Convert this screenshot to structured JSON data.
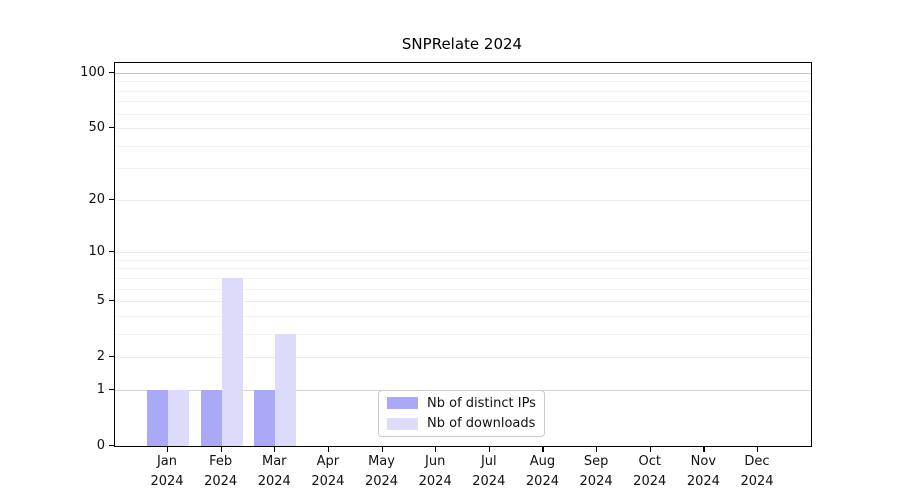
{
  "title": "SNPRelate 2024",
  "chart_data": {
    "type": "bar",
    "title": "SNPRelate 2024",
    "categories": [
      "Jan 2024",
      "Feb 2024",
      "Mar 2024",
      "Apr 2024",
      "May 2024",
      "Jun 2024",
      "Jul 2024",
      "Aug 2024",
      "Sep 2024",
      "Oct 2024",
      "Nov 2024",
      "Dec 2024"
    ],
    "month_labels": [
      "Jan",
      "Feb",
      "Mar",
      "Apr",
      "May",
      "Jun",
      "Jul",
      "Aug",
      "Sep",
      "Oct",
      "Nov",
      "Dec"
    ],
    "year_label": "2024",
    "series": [
      {
        "name": "Nb of distinct IPs",
        "color": "#a9a9f7",
        "values": [
          1,
          1,
          1,
          0,
          0,
          0,
          0,
          0,
          0,
          0,
          0,
          0
        ]
      },
      {
        "name": "Nb of downloads",
        "color": "#dcdcfa",
        "values": [
          1,
          7,
          3,
          0,
          0,
          0,
          0,
          0,
          0,
          0,
          0,
          0
        ]
      }
    ],
    "xlabel": "",
    "ylabel": "",
    "yscale": "log10(value+1)",
    "ylim": [
      0,
      113
    ],
    "yticks": [
      0,
      1,
      2,
      5,
      10,
      20,
      50,
      100
    ],
    "minor_yticks": [
      3,
      4,
      6,
      7,
      8,
      9,
      30,
      40,
      60,
      70,
      80,
      90
    ],
    "grid": true,
    "legend_position": "bottom-center"
  },
  "colors": {
    "bar_distinct_ips": "#a9a9f7",
    "bar_downloads": "#dcdcfa",
    "gridline_minor": "#f2f2f2",
    "gridline_major": "#ebebeb",
    "gridline_one": "#d6d6d6",
    "gridline_hundred": "#c6c6c6",
    "axis": "#000000",
    "legend_border": "#cccccc"
  }
}
